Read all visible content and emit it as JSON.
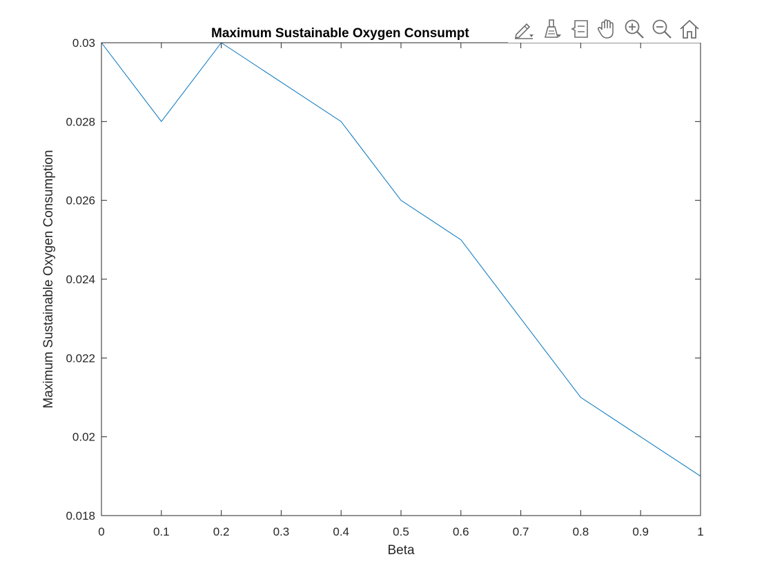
{
  "chart_data": {
    "type": "line",
    "title": "Maximum Sustainable Oxygen Consumpt",
    "xlabel": "Beta",
    "ylabel": "Maximum Sustainable Oxygen Consumption",
    "xlim": [
      0,
      1
    ],
    "ylim": [
      0.018,
      0.03
    ],
    "x_ticks": [
      "0",
      "0.1",
      "0.2",
      "0.3",
      "0.4",
      "0.5",
      "0.6",
      "0.7",
      "0.8",
      "0.9",
      "1"
    ],
    "y_ticks": [
      "0.018",
      "0.02",
      "0.022",
      "0.024",
      "0.026",
      "0.028",
      "0.03"
    ],
    "grid": false,
    "series": [
      {
        "color": "#0072BD",
        "x": [
          0,
          0.1,
          0.2,
          0.3,
          0.4,
          0.5,
          0.6,
          0.7,
          0.8,
          0.9,
          1.0
        ],
        "y": [
          0.03,
          0.028,
          0.03,
          0.029,
          0.028,
          0.026,
          0.025,
          0.023,
          0.021,
          0.02,
          0.019
        ]
      }
    ]
  },
  "toolbar": {
    "icons": [
      "edit-icon",
      "brush-icon",
      "legend-icon",
      "pan-icon",
      "zoom-in-icon",
      "zoom-out-icon",
      "home-icon"
    ]
  }
}
